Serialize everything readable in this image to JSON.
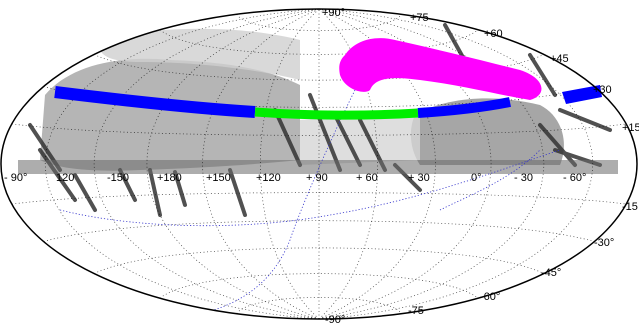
{
  "map": {
    "colors": {
      "background": "#ffffff",
      "survey_gray": "#9a9a9a",
      "stripe_blue": "#0000ff",
      "stripe_green": "#00ee00",
      "region_magenta": "#ff00ff",
      "equator_blue": "#3333cc",
      "graticule": "#000000"
    },
    "top_latitude_labels": [
      "+90°",
      "+75",
      "+60",
      "+45"
    ],
    "right_latitude_labels": [
      "+30",
      "+15",
      "-15",
      "-30°",
      "-45°",
      "-60°"
    ],
    "bottom_latitude_labels": [
      "-90°",
      "-75"
    ],
    "equator_longitude_labels": [
      "- 90°",
      "120",
      "-150",
      "+180",
      "+150",
      "+120",
      "+ 90",
      "+ 60",
      "+ 30",
      "0°",
      "- 30",
      "- 60°"
    ]
  }
}
